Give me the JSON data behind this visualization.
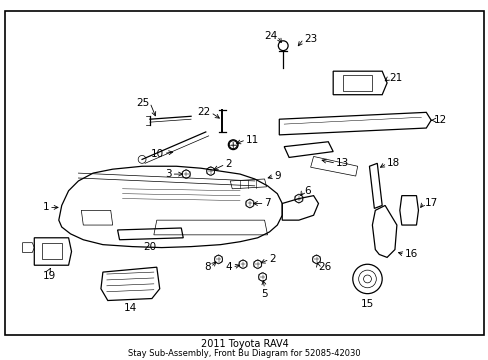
{
  "title": "2011 Toyota RAV4",
  "subtitle": "Stay Sub-Assembly, Front Bu Diagram for 52085-42030",
  "bg_color": "#ffffff",
  "fig_width": 4.89,
  "fig_height": 3.6,
  "dpi": 100,
  "label_fontsize": 7.5,
  "caption_fontsize": 7,
  "caption_sub_fontsize": 6
}
